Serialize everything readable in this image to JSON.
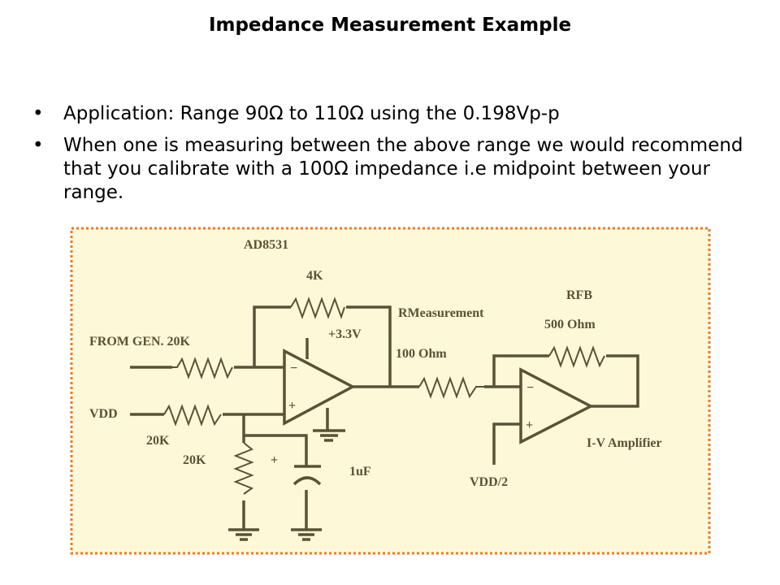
{
  "slide": {
    "title": "Impedance Measurement Example",
    "bullets": [
      "Application: Range 90Ω to 110Ω using the 0.198Vp-p",
      "When one is measuring between the above range we would recommend that you calibrate with a 100Ω impedance i.e midpoint between your range."
    ],
    "bullet_glyph": "•"
  },
  "diagram": {
    "background": "#fdf8d8",
    "border_color": "#ee7a22",
    "labels": {
      "opamp1": "AD8531",
      "feedback_resistor": "4K",
      "supply": "+3.3V",
      "input_gen": "FROM GEN. 20K",
      "vdd": "VDD",
      "vdd_resistor": "20K",
      "divider_resistor": "20K",
      "cap_plus": "+",
      "capacitor": "1uF",
      "rmeas_title": "RMeasurement",
      "rmeas_value": "100 Ohm",
      "rfb_title": "RFB",
      "rfb_value": "500 Ohm",
      "vdd_half": "VDD/2",
      "iv_amp": "I-V Amplifier",
      "inv": "−",
      "noninv": "+"
    }
  }
}
